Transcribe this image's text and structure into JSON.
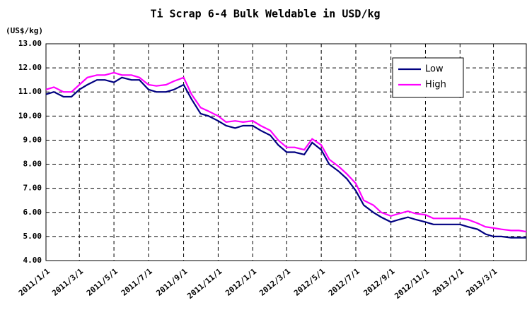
{
  "chart_data": {
    "type": "line",
    "title": "Ti Scrap 6-4 Bulk Weldable in USD/kg",
    "y_label": "(US$/kg)",
    "x": [
      "2011/1/1",
      "2011/1/15",
      "2011/2/1",
      "2011/2/15",
      "2011/3/1",
      "2011/3/15",
      "2011/4/1",
      "2011/4/15",
      "2011/5/1",
      "2011/5/15",
      "2011/6/1",
      "2011/6/15",
      "2011/7/1",
      "2011/7/15",
      "2011/8/1",
      "2011/8/15",
      "2011/9/1",
      "2011/9/15",
      "2011/10/1",
      "2011/10/15",
      "2011/11/1",
      "2011/11/15",
      "2011/12/1",
      "2011/12/15",
      "2012/1/1",
      "2012/1/15",
      "2012/2/1",
      "2012/2/15",
      "2012/3/1",
      "2012/3/15",
      "2012/4/1",
      "2012/4/15",
      "2012/5/1",
      "2012/5/15",
      "2012/6/1",
      "2012/6/15",
      "2012/7/1",
      "2012/7/15",
      "2012/8/1",
      "2012/8/15",
      "2012/9/1",
      "2012/9/15",
      "2012/10/1",
      "2012/10/15",
      "2012/11/1",
      "2012/11/15",
      "2012/12/1",
      "2012/12/15",
      "2013/1/1",
      "2013/1/15",
      "2013/2/1",
      "2013/2/15",
      "2013/3/1",
      "2013/3/15",
      "2013/4/1",
      "2013/4/15",
      "2013/4/28"
    ],
    "series": [
      {
        "name": "Low",
        "color": "#000080",
        "values": [
          10.9,
          11.0,
          10.8,
          10.8,
          11.1,
          11.3,
          11.5,
          11.5,
          11.4,
          11.6,
          11.5,
          11.5,
          11.1,
          11.0,
          11.0,
          11.1,
          11.3,
          10.7,
          10.1,
          10.0,
          9.8,
          9.6,
          9.5,
          9.6,
          9.6,
          9.4,
          9.2,
          8.8,
          8.5,
          8.5,
          8.4,
          8.9,
          8.6,
          8.0,
          7.7,
          7.4,
          6.9,
          6.3,
          6.0,
          5.8,
          5.6,
          5.7,
          5.8,
          5.7,
          5.6,
          5.5,
          5.5,
          5.5,
          5.5,
          5.4,
          5.3,
          5.1,
          5.0,
          5.0,
          4.95,
          4.95,
          4.95
        ]
      },
      {
        "name": "High",
        "color": "#ff00ff",
        "values": [
          11.1,
          11.2,
          11.0,
          11.0,
          11.3,
          11.6,
          11.7,
          11.7,
          11.8,
          11.7,
          11.7,
          11.6,
          11.3,
          11.25,
          11.3,
          11.45,
          11.6,
          10.9,
          10.35,
          10.2,
          10.0,
          9.75,
          9.8,
          9.75,
          9.8,
          9.6,
          9.4,
          9.0,
          8.7,
          8.7,
          8.6,
          9.05,
          8.8,
          8.2,
          7.9,
          7.6,
          7.2,
          6.5,
          6.3,
          6.0,
          5.85,
          5.95,
          6.05,
          5.95,
          5.9,
          5.75,
          5.75,
          5.75,
          5.75,
          5.7,
          5.55,
          5.4,
          5.35,
          5.3,
          5.25,
          5.25,
          5.2
        ]
      }
    ],
    "xlim": [
      "2011/1/1",
      "2013/4/28"
    ],
    "xticks": [
      "2011/1/1",
      "2011/3/1",
      "2011/5/1",
      "2011/7/1",
      "2011/9/1",
      "2011/11/1",
      "2012/1/1",
      "2012/3/1",
      "2012/5/1",
      "2012/7/1",
      "2012/9/1",
      "2012/11/1",
      "2013/1/1",
      "2013/3/1"
    ],
    "ylim": [
      4,
      13
    ],
    "yticks": [
      {
        "value": 4,
        "label": "4.00"
      },
      {
        "value": 5,
        "label": "5.00"
      },
      {
        "value": 6,
        "label": "6.00"
      },
      {
        "value": 7,
        "label": "7.00"
      },
      {
        "value": 8,
        "label": "8.00"
      },
      {
        "value": 9,
        "label": "9.00"
      },
      {
        "value": 10,
        "label": "10.00"
      },
      {
        "value": 11,
        "label": "11.00"
      },
      {
        "value": 12,
        "label": "12.00"
      },
      {
        "value": 13,
        "label": "13.00"
      }
    ],
    "grid": true,
    "legend": "upper right"
  }
}
